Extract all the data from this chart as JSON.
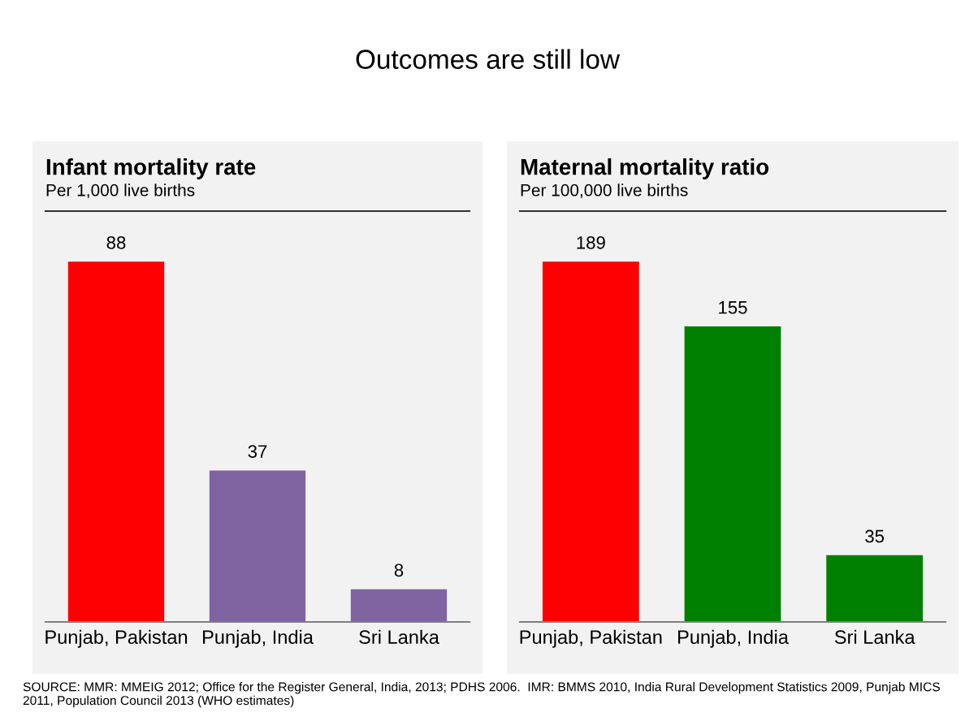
{
  "chart_data": [
    {
      "type": "other",
      "title": "Outcomes are still low",
      "annotations": [
        "SOURCE: MMR: MMEIG 2012; Office for the Register General, India, 2013; PDHS 2006.  IMR: BMMS 2010, India Rural Development Statistics 2009, Punjab MICS 2011, Population Council 2013 (WHO estimates)"
      ]
    },
    {
      "type": "bar",
      "title": "Infant mortality rate",
      "subtitle": "Per 1,000 live births",
      "categories": [
        "Punjab, Pakistan",
        "Punjab, India",
        "Sri Lanka"
      ],
      "values": [
        88,
        37,
        8
      ],
      "colors": [
        "#ff0000",
        "#8064a2",
        "#8064a2"
      ],
      "data_labels": true,
      "tick_labels": "x",
      "grid": false,
      "legend": false
    },
    {
      "type": "bar",
      "title": "Maternal mortality ratio",
      "subtitle": "Per 100,000 live births",
      "categories": [
        "Punjab, Pakistan",
        "Punjab, India",
        "Sri Lanka"
      ],
      "values": [
        189,
        155,
        35
      ],
      "colors": [
        "#ff0000",
        "#008000",
        "#008000"
      ],
      "data_labels": true,
      "tick_labels": "x",
      "grid": false,
      "legend": false
    }
  ]
}
